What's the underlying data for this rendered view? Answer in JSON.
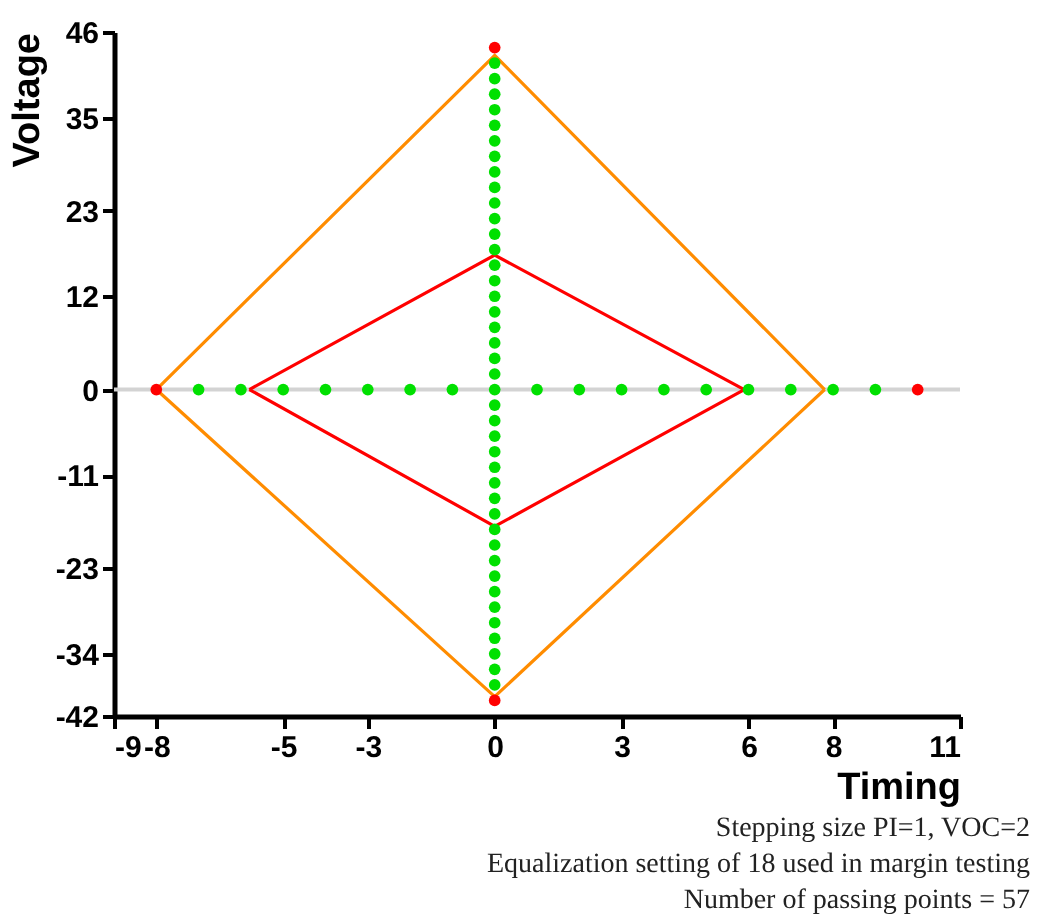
{
  "chart_data": {
    "type": "scatter",
    "xlabel": "Timing",
    "ylabel": "Voltage",
    "annotations": [
      "Stepping size PI=1, VOC=2",
      "Equalization setting of 18 used in margin testing",
      "Number of passing points = 57"
    ],
    "xlim": [
      -9,
      11
    ],
    "ylim": [
      -42,
      46
    ],
    "xticks": [
      -9,
      -8,
      -5,
      -3,
      0,
      3,
      6,
      8,
      11
    ],
    "yticks": [
      -42,
      -34,
      -23,
      -11,
      0,
      12,
      23,
      35,
      46
    ],
    "grid": false,
    "marker": "circle",
    "ref_lines": [
      {
        "axis": "y",
        "value": 0,
        "color": "#d3d3d3"
      }
    ],
    "series": [
      {
        "type": "line",
        "marker": "none",
        "color": "#ff8c00",
        "x": [
          -8,
          0,
          7.8
        ],
        "values": [
          0,
          43,
          0
        ]
      },
      {
        "type": "line",
        "marker": "none",
        "color": "#ff8c00",
        "x": [
          -8,
          0,
          7.8
        ],
        "values": [
          0,
          -39.5,
          0
        ]
      },
      {
        "type": "line",
        "marker": "none",
        "color": "#ff0000",
        "x": [
          -5.8,
          0,
          5.9
        ],
        "values": [
          0,
          17.3,
          0
        ]
      },
      {
        "type": "line",
        "marker": "none",
        "color": "#ff0000",
        "x": [
          -5.8,
          0,
          5.9
        ],
        "values": [
          0,
          -17.6,
          0
        ]
      },
      {
        "color": "#00e000",
        "x": [
          -7,
          -6,
          -5,
          -4,
          -3,
          -2,
          -1,
          1,
          2,
          3,
          4,
          5,
          6,
          7,
          8,
          9,
          0,
          0,
          0,
          0,
          0,
          0,
          0,
          0,
          0,
          0,
          0,
          0,
          0,
          0,
          0,
          0,
          0,
          0,
          0,
          0,
          0,
          0,
          0,
          0,
          0,
          0,
          0,
          0,
          0,
          0,
          0,
          0,
          0,
          0,
          0,
          0,
          0,
          0,
          0,
          0,
          0
        ],
        "values": [
          0,
          0,
          0,
          0,
          0,
          0,
          0,
          0,
          0,
          0,
          0,
          0,
          0,
          0,
          0,
          0,
          -38,
          -36,
          -34,
          -32,
          -30,
          -28,
          -26,
          -24,
          -22,
          -20,
          -18,
          -16,
          -14,
          -12,
          -10,
          -8,
          -6,
          -4,
          -2,
          0,
          2,
          4,
          6,
          8,
          10,
          12,
          14,
          16,
          18,
          20,
          22,
          24,
          26,
          28,
          30,
          32,
          34,
          36,
          38,
          40,
          42
        ]
      },
      {
        "color": "#ff0000",
        "x": [
          -8,
          10,
          0,
          0
        ],
        "values": [
          0,
          0,
          44,
          -40
        ]
      }
    ]
  }
}
